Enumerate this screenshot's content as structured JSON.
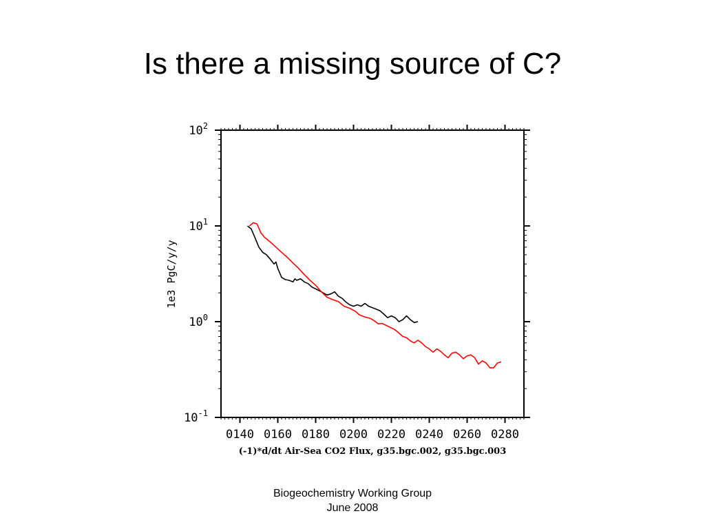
{
  "slide": {
    "title": "Is there a missing source of C?",
    "footer_line1": "Biogeochemistry Working Group",
    "footer_line2": "June 2008"
  },
  "chart_data": {
    "type": "line",
    "xlabel": "(-1)*d/dt Air-Sea CO2 Flux, g35.bgc.002, g35.bgc.003",
    "ylabel": "1e3 PgC/y/y",
    "y_scale": "log",
    "ylim": [
      0.1,
      100
    ],
    "xlim": [
      130,
      290
    ],
    "x_ticks": [
      "0140",
      "0160",
      "0180",
      "0200",
      "0220",
      "0240",
      "0260",
      "0280"
    ],
    "x_tick_values": [
      140,
      160,
      180,
      200,
      220,
      240,
      260,
      280
    ],
    "y_tick_values": [
      0.1,
      1,
      10,
      100
    ],
    "y_tick_bases": [
      "10",
      "10",
      "10",
      "10"
    ],
    "y_tick_exps": [
      "-1",
      "0",
      "1",
      "2"
    ],
    "colors": {
      "black_series": "#000000",
      "red_series": "#ff0000"
    },
    "series": [
      {
        "color": "#000000",
        "points": [
          [
            144,
            10
          ],
          [
            146,
            9.3
          ],
          [
            148,
            7.5
          ],
          [
            150,
            6.0
          ],
          [
            152,
            5.3
          ],
          [
            154,
            5.0
          ],
          [
            156,
            4.5
          ],
          [
            158,
            4.0
          ],
          [
            159,
            4.2
          ],
          [
            160,
            3.6
          ],
          [
            162,
            2.9
          ],
          [
            164,
            2.75
          ],
          [
            166,
            2.7
          ],
          [
            168,
            2.6
          ],
          [
            169,
            2.8
          ],
          [
            170,
            2.7
          ],
          [
            172,
            2.8
          ],
          [
            174,
            2.6
          ],
          [
            176,
            2.5
          ],
          [
            178,
            2.3
          ],
          [
            180,
            2.2
          ],
          [
            182,
            2.1
          ],
          [
            184,
            2.0
          ],
          [
            186,
            1.9
          ],
          [
            188,
            1.95
          ],
          [
            190,
            2.05
          ],
          [
            192,
            1.85
          ],
          [
            194,
            1.75
          ],
          [
            196,
            1.6
          ],
          [
            198,
            1.5
          ],
          [
            200,
            1.45
          ],
          [
            202,
            1.5
          ],
          [
            204,
            1.45
          ],
          [
            206,
            1.55
          ],
          [
            208,
            1.45
          ],
          [
            210,
            1.4
          ],
          [
            212,
            1.35
          ],
          [
            214,
            1.3
          ],
          [
            216,
            1.2
          ],
          [
            218,
            1.1
          ],
          [
            220,
            1.15
          ],
          [
            222,
            1.1
          ],
          [
            224,
            1.0
          ],
          [
            226,
            1.05
          ],
          [
            228,
            1.15
          ],
          [
            230,
            1.05
          ],
          [
            232,
            0.98
          ],
          [
            234,
            1.0
          ]
        ]
      },
      {
        "color": "#ff0000",
        "points": [
          [
            145,
            10
          ],
          [
            147,
            10.8
          ],
          [
            149,
            10.5
          ],
          [
            151,
            8.5
          ],
          [
            153,
            7.6
          ],
          [
            156,
            6.8
          ],
          [
            159,
            6.0
          ],
          [
            162,
            5.3
          ],
          [
            165,
            4.7
          ],
          [
            168,
            4.1
          ],
          [
            171,
            3.6
          ],
          [
            174,
            3.1
          ],
          [
            177,
            2.7
          ],
          [
            180,
            2.4
          ],
          [
            183,
            2.05
          ],
          [
            186,
            1.8
          ],
          [
            189,
            1.7
          ],
          [
            192,
            1.62
          ],
          [
            195,
            1.45
          ],
          [
            198,
            1.38
          ],
          [
            201,
            1.28
          ],
          [
            203,
            1.18
          ],
          [
            206,
            1.12
          ],
          [
            209,
            1.08
          ],
          [
            211,
            1.02
          ],
          [
            213,
            0.95
          ],
          [
            215,
            0.96
          ],
          [
            218,
            0.9
          ],
          [
            220,
            0.86
          ],
          [
            222,
            0.82
          ],
          [
            224,
            0.76
          ],
          [
            226,
            0.7
          ],
          [
            228,
            0.68
          ],
          [
            230,
            0.63
          ],
          [
            232,
            0.6
          ],
          [
            234,
            0.64
          ],
          [
            236,
            0.6
          ],
          [
            238,
            0.55
          ],
          [
            240,
            0.52
          ],
          [
            242,
            0.48
          ],
          [
            244,
            0.52
          ],
          [
            246,
            0.49
          ],
          [
            248,
            0.45
          ],
          [
            250,
            0.42
          ],
          [
            252,
            0.47
          ],
          [
            254,
            0.48
          ],
          [
            256,
            0.45
          ],
          [
            258,
            0.41
          ],
          [
            260,
            0.44
          ],
          [
            262,
            0.45
          ],
          [
            264,
            0.42
          ],
          [
            266,
            0.36
          ],
          [
            268,
            0.39
          ],
          [
            270,
            0.37
          ],
          [
            272,
            0.33
          ],
          [
            274,
            0.33
          ],
          [
            276,
            0.37
          ],
          [
            278,
            0.38
          ]
        ]
      }
    ]
  }
}
